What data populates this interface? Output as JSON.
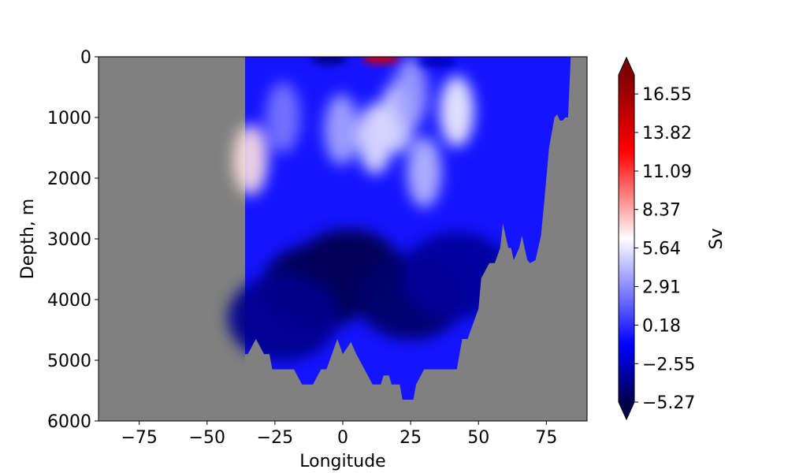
{
  "chart_data": {
    "type": "heatmap",
    "subtype": "filled contour section",
    "title": "",
    "xlabel": "Longitude",
    "ylabel": "Depth, m",
    "xlim": [
      -90,
      90
    ],
    "ylim": [
      6000,
      0
    ],
    "x_ticks": [
      -75,
      -50,
      -25,
      0,
      25,
      50,
      75
    ],
    "x_tick_labels": [
      "−75",
      "−50",
      "−25",
      "0",
      "25",
      "50",
      "75"
    ],
    "y_ticks": [
      0,
      1000,
      2000,
      3000,
      4000,
      5000,
      6000
    ],
    "y_tick_labels": [
      "0",
      "1000",
      "2000",
      "3000",
      "4000",
      "5000",
      "6000"
    ],
    "y_inverted": true,
    "grid": false,
    "colorbar": {
      "label": "Sv",
      "vmin": -5.27,
      "vmax": 17.9,
      "extend": "both",
      "ticks": [
        -5.27,
        -2.55,
        0.18,
        2.91,
        5.64,
        8.37,
        11.09,
        13.82,
        16.55
      ],
      "tick_labels": [
        "−5.27",
        "−2.55",
        "0.18",
        "2.91",
        "5.64",
        "8.37",
        "11.09",
        "13.82",
        "16.55"
      ],
      "colormap": "seismic",
      "colormap_stops": [
        "#00004d",
        "#0000ff",
        "#ffffff",
        "#ff0000",
        "#800000"
      ]
    },
    "mask_color": "#808080",
    "data_west_edge_lon": -36,
    "bathymetry": {
      "lon": [
        -36,
        -35,
        -32,
        -29,
        -27,
        -26,
        -24,
        -22,
        -18,
        -15,
        -11,
        -8,
        -6,
        -4,
        -2,
        0,
        3,
        5,
        8,
        11,
        14,
        15,
        17,
        18,
        21,
        22,
        26,
        27,
        30,
        34,
        38,
        42,
        43,
        44,
        46,
        48,
        50,
        51,
        54,
        56,
        58,
        59,
        60,
        61,
        62,
        63,
        65,
        66,
        67,
        68,
        69,
        71,
        73,
        74,
        75,
        76,
        78,
        79,
        80,
        81,
        82,
        83,
        84
      ],
      "depth": [
        4900,
        4900,
        4650,
        4900,
        4900,
        5150,
        5150,
        5150,
        5150,
        5400,
        5400,
        5150,
        5150,
        4900,
        4650,
        4900,
        4700,
        4900,
        5150,
        5400,
        5400,
        5250,
        5250,
        5400,
        5400,
        5650,
        5650,
        5400,
        5150,
        5150,
        5150,
        5150,
        4900,
        4650,
        4650,
        4400,
        4150,
        3650,
        3400,
        3400,
        3150,
        2750,
        2950,
        3150,
        3150,
        3350,
        3150,
        2950,
        3150,
        3350,
        3400,
        3350,
        2950,
        2500,
        2000,
        1500,
        1000,
        950,
        1050,
        1050,
        1000,
        1000,
        0
      ]
    },
    "features": [
      {
        "kind": "maximum",
        "lon": 14,
        "depth": 20,
        "value": 14.5
      },
      {
        "kind": "maximum",
        "lon": -34,
        "depth": 1700,
        "value": 7.0
      },
      {
        "kind": "maximum",
        "lon": 12,
        "depth": 1350,
        "value": 5.5
      },
      {
        "kind": "maximum",
        "lon": 20,
        "depth": 1000,
        "value": 5.3
      },
      {
        "kind": "maximum",
        "lon": 42,
        "depth": 900,
        "value": 6.0
      },
      {
        "kind": "maximum",
        "lon": 30,
        "depth": 1900,
        "value": 4.3
      },
      {
        "kind": "maximum",
        "lon": -0.5,
        "depth": 1200,
        "value": 3.8
      },
      {
        "kind": "maximum",
        "lon": 25,
        "depth": 600,
        "value": 3.5
      },
      {
        "kind": "maximum",
        "lon": -22,
        "depth": 1000,
        "value": 2.4
      },
      {
        "kind": "minimum",
        "lon": 2,
        "depth": 3550,
        "value": -5.2
      },
      {
        "kind": "minimum",
        "lon": -10,
        "depth": 3800,
        "value": -5.0
      },
      {
        "kind": "minimum",
        "lon": 25,
        "depth": 3950,
        "value": -4.6
      },
      {
        "kind": "minimum",
        "lon": -22,
        "depth": 4300,
        "value": -3.8
      },
      {
        "kind": "minimum",
        "lon": 42,
        "depth": 3600,
        "value": -3.5
      },
      {
        "kind": "minimum",
        "lon": -5,
        "depth": 30,
        "value": -4.0
      },
      {
        "kind": "minimum",
        "lon": 35,
        "depth": 80,
        "value": -2.6
      }
    ]
  }
}
